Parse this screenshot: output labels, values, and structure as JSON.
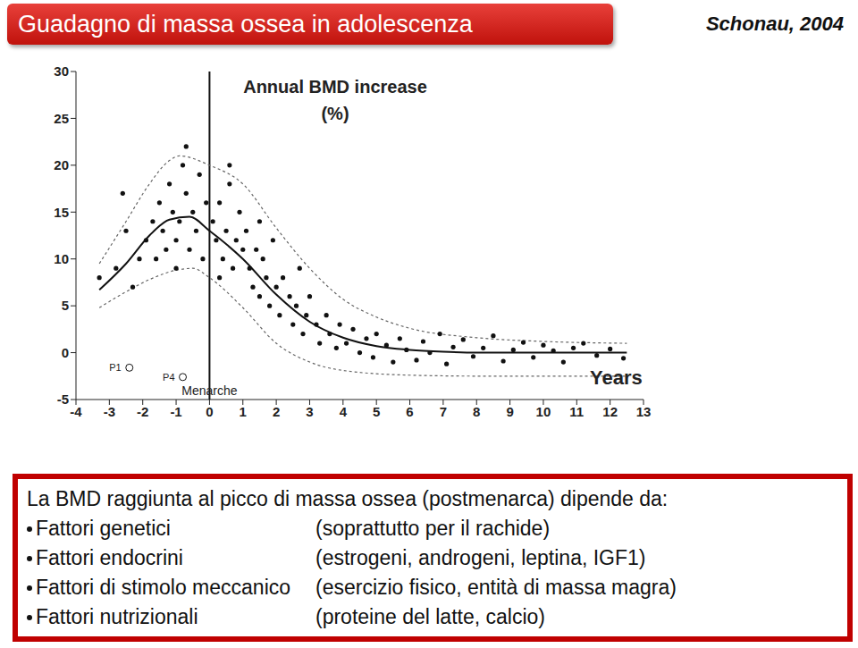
{
  "header": {
    "title": "Guadagno di massa ossea in adolescenza",
    "source": "Schonau, 2004"
  },
  "chart_data": {
    "type": "scatter",
    "title": "Annual BMD increase",
    "subtitle": "(%)",
    "xlabel": "Years",
    "xlim": [
      -4,
      13
    ],
    "xticks": [
      -4,
      -3,
      -2,
      -1,
      0,
      1,
      2,
      3,
      4,
      5,
      6,
      7,
      8,
      9,
      10,
      11,
      12,
      13
    ],
    "ylim": [
      -5,
      30
    ],
    "yticks": [
      -5,
      0,
      5,
      10,
      15,
      20,
      25,
      30
    ],
    "grid": false,
    "series": [
      {
        "type": "scatter",
        "color": "#111111",
        "marker": "circle",
        "x": [
          -3.3,
          -2.8,
          -2.6,
          -2.5,
          -2.3,
          -2.1,
          -1.9,
          -1.7,
          -1.6,
          -1.5,
          -1.4,
          -1.3,
          -1.2,
          -1.1,
          -1.0,
          -1.0,
          -0.9,
          -0.8,
          -0.7,
          -0.7,
          -0.6,
          -0.5,
          -0.4,
          -0.3,
          -0.2,
          -0.1,
          0.1,
          0.2,
          0.3,
          0.3,
          0.4,
          0.5,
          0.6,
          0.6,
          0.7,
          0.8,
          0.9,
          1.0,
          1.1,
          1.2,
          1.3,
          1.4,
          1.5,
          1.5,
          1.6,
          1.7,
          1.8,
          1.9,
          2.0,
          2.1,
          2.2,
          2.4,
          2.5,
          2.6,
          2.7,
          2.8,
          2.9,
          3.0,
          3.2,
          3.3,
          3.5,
          3.6,
          3.8,
          3.9,
          4.1,
          4.3,
          4.5,
          4.7,
          4.9,
          5.0,
          5.3,
          5.5,
          5.7,
          5.9,
          6.2,
          6.4,
          6.6,
          6.9,
          7.1,
          7.3,
          7.6,
          7.9,
          8.2,
          8.5,
          8.8,
          9.1,
          9.4,
          9.7,
          10.0,
          10.3,
          10.6,
          10.9,
          11.2,
          11.6,
          12.0,
          12.4
        ],
        "values": [
          8,
          9,
          17,
          13,
          7,
          10,
          12,
          14,
          10,
          16,
          13,
          11,
          18,
          15,
          12,
          9,
          14,
          20,
          17,
          22,
          11,
          15,
          13,
          19,
          10,
          16,
          14,
          12,
          16,
          8,
          10,
          13,
          18,
          20,
          9,
          12,
          15,
          11,
          13,
          9,
          7,
          11,
          6,
          14,
          10,
          8,
          5,
          12,
          7,
          4,
          8,
          6,
          3,
          5,
          9,
          2,
          4,
          6,
          3,
          1,
          4,
          2,
          0.5,
          3,
          1,
          2.5,
          0,
          1.5,
          -0.5,
          2,
          0.8,
          -1,
          1.5,
          0.3,
          -0.8,
          1.2,
          0,
          2,
          -1.2,
          0.6,
          1.4,
          -0.4,
          0.5,
          1.8,
          -0.9,
          0.3,
          1.1,
          -0.5,
          0.8,
          0.2,
          -1,
          0.5,
          1,
          -0.3,
          0.4,
          -0.6
        ]
      },
      {
        "type": "line",
        "color": "#111111",
        "line_style": "solid",
        "x": [
          -3.3,
          -2.5,
          -1.8,
          -1.2,
          -0.6,
          0,
          1,
          2,
          3,
          4,
          5,
          6,
          7,
          8,
          10,
          12.5
        ],
        "values": [
          6.7,
          9.5,
          12.5,
          14.2,
          14.5,
          13,
          10,
          6.2,
          3.3,
          1.6,
          0.7,
          0.3,
          0.1,
          0,
          0,
          0
        ]
      },
      {
        "type": "line",
        "color": "#666666",
        "line_style": "dashed",
        "x": [
          -3.3,
          -2.5,
          -1.8,
          -1.2,
          -0.9,
          0,
          1,
          2,
          3,
          4,
          5,
          6,
          8,
          10,
          12.5
        ],
        "values": [
          9.5,
          14,
          18,
          20.5,
          21,
          20,
          18,
          13.3,
          9,
          5.7,
          3.8,
          2.6,
          1.6,
          1.2,
          1
        ]
      },
      {
        "type": "line",
        "color": "#666666",
        "line_style": "dashed",
        "x": [
          -3.3,
          -2.5,
          -1.8,
          -1,
          -0.5,
          0,
          1,
          2,
          3,
          4,
          6,
          8,
          10,
          12.5
        ],
        "values": [
          4.8,
          6.5,
          7.8,
          8.8,
          9,
          8,
          4.8,
          1,
          -1,
          -1.9,
          -2.4,
          -2.5,
          -2.5,
          -2.5
        ]
      }
    ],
    "annotations": [
      {
        "type": "vline",
        "text": "Menarche",
        "x": 0
      },
      {
        "type": "point",
        "text": "P1",
        "x": -2.4,
        "y": -1.6
      },
      {
        "type": "point",
        "text": "P4",
        "x": -0.8,
        "y": -2.6
      }
    ]
  },
  "box": {
    "intro": "La BMD raggiunta al picco di massa ossea (postmenarca) dipende da:",
    "items": [
      {
        "name": "Fattori genetici",
        "detail": "(soprattutto per il rachide)"
      },
      {
        "name": "Fattori endocrini",
        "detail": "(estrogeni, androgeni, leptina, IGF1)"
      },
      {
        "name": "Fattori di stimolo meccanico",
        "detail": "(esercizio fisico, entità di massa magra)"
      },
      {
        "name": "Fattori nutrizionali",
        "detail": "(proteine del latte, calcio)"
      }
    ]
  }
}
